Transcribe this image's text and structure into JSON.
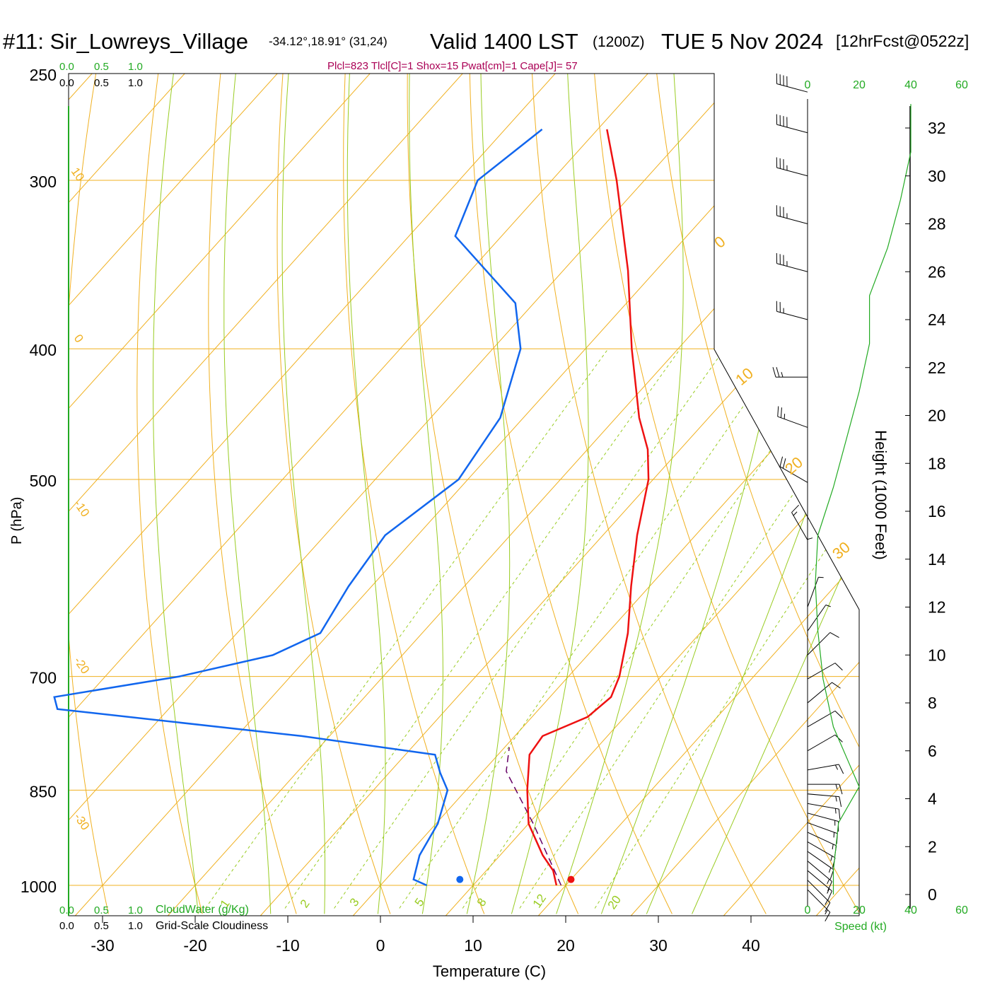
{
  "header": {
    "station": "#11: Sir_Lowreys_Village",
    "coords": "-34.12°,18.91° (31,24)",
    "valid": "Valid 1400 LST",
    "zulu": "(1200Z)",
    "date": "TUE 5 Nov 2024",
    "forecast": "[12hrFcst@0522z]",
    "indices": "Plcl=823 Tlcl[C]=1 Shox=15 Pwat[cm]=1 Cape[J]= 57"
  },
  "axes": {
    "pressure_label": "P (hPa)",
    "pressure_ticks": [
      "250",
      "300",
      "400",
      "500",
      "700",
      "850",
      "1000"
    ],
    "temperature_label": "Temperature (C)",
    "temperature_ticks": [
      "-30",
      "-20",
      "-10",
      "0",
      "10",
      "20",
      "30",
      "40"
    ],
    "height_label": "Height (1000 Feet)",
    "height_ticks": [
      "0",
      "2",
      "4",
      "6",
      "8",
      "10",
      "12",
      "14",
      "16",
      "18",
      "20",
      "22",
      "24",
      "26",
      "28",
      "30",
      "32"
    ],
    "speed_label": "Speed (kt)",
    "speed_ticks": [
      "0",
      "20",
      "40",
      "60"
    ]
  },
  "cloud_scale": {
    "green_ticks": [
      "0.0",
      "0.5",
      "1.0"
    ],
    "black_ticks": [
      "0.0",
      "0.5",
      "1.0"
    ],
    "cloudwater_label": "CloudWater (g/Kg)",
    "cloudiness_label": "Grid-Scale Cloudiness"
  },
  "isotherm_labels": [
    "10",
    "0",
    "-10",
    "-20",
    "-30"
  ],
  "theta_labels": [
    "0",
    "10",
    "20",
    "30"
  ],
  "mixing_ratio_labels": [
    "1",
    "2",
    "3",
    "5",
    "8",
    "12",
    "20"
  ],
  "colors": {
    "temperature": "#ee1111",
    "dewpoint": "#1166ee",
    "parcel": "#660066",
    "isotherms": "#f0b020",
    "dry_adiabats": "#f0b020",
    "moist_adiabats": "#99cc22",
    "mixing_ratio": "#99cc22",
    "wind_speed": "#22aa22",
    "indices_text": "#aa0055",
    "scale_green": "#22aa22"
  },
  "chart_data": {
    "type": "line",
    "title": "Skew-T sounding",
    "series": [
      {
        "name": "Temperature",
        "unit": "C",
        "points": [
          {
            "p": 1000,
            "t": 19.0
          },
          {
            "p": 975,
            "t": 17.2
          },
          {
            "p": 950,
            "t": 14.6
          },
          {
            "p": 900,
            "t": 10.0
          },
          {
            "p": 850,
            "t": 6.6
          },
          {
            "p": 800,
            "t": 3.4
          },
          {
            "p": 775,
            "t": 3.0
          },
          {
            "p": 750,
            "t": 6.0
          },
          {
            "p": 725,
            "t": 6.6
          },
          {
            "p": 700,
            "t": 5.5
          },
          {
            "p": 650,
            "t": 2.2
          },
          {
            "p": 600,
            "t": -2.0
          },
          {
            "p": 550,
            "t": -6.3
          },
          {
            "p": 500,
            "t": -10.5
          },
          {
            "p": 475,
            "t": -13.5
          },
          {
            "p": 450,
            "t": -17.5
          },
          {
            "p": 400,
            "t": -25.0
          },
          {
            "p": 350,
            "t": -33.0
          },
          {
            "p": 300,
            "t": -43.0
          },
          {
            "p": 275,
            "t": -49.0
          }
        ]
      },
      {
        "name": "Dewpoint",
        "unit": "C",
        "points": [
          {
            "p": 1000,
            "td": 5.0
          },
          {
            "p": 990,
            "td": 3.0
          },
          {
            "p": 950,
            "td": 1.3
          },
          {
            "p": 900,
            "td": 0.2
          },
          {
            "p": 850,
            "td": -2.0
          },
          {
            "p": 825,
            "td": -4.5
          },
          {
            "p": 800,
            "td": -6.8
          },
          {
            "p": 775,
            "td": -23.0
          },
          {
            "p": 740,
            "td": -52.0
          },
          {
            "p": 725,
            "td": -53.5
          },
          {
            "p": 700,
            "td": -42.0
          },
          {
            "p": 675,
            "td": -34.0
          },
          {
            "p": 650,
            "td": -31.0
          },
          {
            "p": 600,
            "td": -32.5
          },
          {
            "p": 550,
            "td": -33.5
          },
          {
            "p": 500,
            "td": -31.0
          },
          {
            "p": 450,
            "td": -32.5
          },
          {
            "p": 400,
            "td": -37.0
          },
          {
            "p": 370,
            "td": -42.0
          },
          {
            "p": 330,
            "td": -55.0
          },
          {
            "p": 300,
            "td": -58.0
          },
          {
            "p": 275,
            "td": -56.0
          }
        ]
      },
      {
        "name": "Parcel",
        "unit": "C",
        "points": [
          {
            "p": 1000,
            "t": 19.5
          },
          {
            "p": 900,
            "t": 10.5
          },
          {
            "p": 823,
            "t": 2.5
          },
          {
            "p": 790,
            "t": 0.5
          }
        ]
      }
    ],
    "surface_markers": {
      "temperature": 20,
      "dewpoint": 8
    },
    "wind_speed_profile_kt": [
      {
        "h": 0,
        "s": 10
      },
      {
        "h": 1,
        "s": 10
      },
      {
        "h": 3,
        "s": 12
      },
      {
        "h": 4.5,
        "s": 20
      },
      {
        "h": 5.5,
        "s": 16
      },
      {
        "h": 7,
        "s": 10
      },
      {
        "h": 9,
        "s": 6
      },
      {
        "h": 11,
        "s": 4
      },
      {
        "h": 13,
        "s": 3
      },
      {
        "h": 15,
        "s": 4
      },
      {
        "h": 17,
        "s": 10
      },
      {
        "h": 19,
        "s": 15
      },
      {
        "h": 21,
        "s": 20
      },
      {
        "h": 23,
        "s": 24
      },
      {
        "h": 25,
        "s": 24
      },
      {
        "h": 27,
        "s": 31
      },
      {
        "h": 29,
        "s": 36
      },
      {
        "h": 31,
        "s": 40
      },
      {
        "h": 33,
        "s": 40
      }
    ],
    "wind_barbs": [
      {
        "h": 0.2,
        "dir": 135,
        "kt": 15
      },
      {
        "h": 0.6,
        "dir": 135,
        "kt": 15
      },
      {
        "h": 1.0,
        "dir": 130,
        "kt": 15
      },
      {
        "h": 1.4,
        "dir": 130,
        "kt": 15
      },
      {
        "h": 1.8,
        "dir": 125,
        "kt": 15
      },
      {
        "h": 2.2,
        "dir": 120,
        "kt": 15
      },
      {
        "h": 2.6,
        "dir": 115,
        "kt": 15
      },
      {
        "h": 3.0,
        "dir": 110,
        "kt": 15
      },
      {
        "h": 3.4,
        "dir": 105,
        "kt": 15
      },
      {
        "h": 3.8,
        "dir": 100,
        "kt": 15
      },
      {
        "h": 4.2,
        "dir": 95,
        "kt": 15
      },
      {
        "h": 4.6,
        "dir": 90,
        "kt": 15
      },
      {
        "h": 5.2,
        "dir": 80,
        "kt": 15
      },
      {
        "h": 6.0,
        "dir": 60,
        "kt": 10
      },
      {
        "h": 7.0,
        "dir": 60,
        "kt": 10
      },
      {
        "h": 8.0,
        "dir": 50,
        "kt": 10
      },
      {
        "h": 9.0,
        "dir": 60,
        "kt": 10
      },
      {
        "h": 10.0,
        "dir": 45,
        "kt": 10
      },
      {
        "h": 11.0,
        "dir": 35,
        "kt": 5
      },
      {
        "h": 12.0,
        "dir": 20,
        "kt": 5
      },
      {
        "h": 13.5,
        "dir": 0,
        "kt": 5
      },
      {
        "h": 14.8,
        "dir": 330,
        "kt": 15
      },
      {
        "h": 17.2,
        "dir": 300,
        "kt": 20
      },
      {
        "h": 19.5,
        "dir": 290,
        "kt": 25
      },
      {
        "h": 21.6,
        "dir": 270,
        "kt": 25
      },
      {
        "h": 24.0,
        "dir": 285,
        "kt": 25
      },
      {
        "h": 26.0,
        "dir": 285,
        "kt": 35
      },
      {
        "h": 28.0,
        "dir": 285,
        "kt": 35
      },
      {
        "h": 30.0,
        "dir": 285,
        "kt": 35
      },
      {
        "h": 31.8,
        "dir": 285,
        "kt": 40
      },
      {
        "h": 33.5,
        "dir": 285,
        "kt": 40
      }
    ]
  }
}
